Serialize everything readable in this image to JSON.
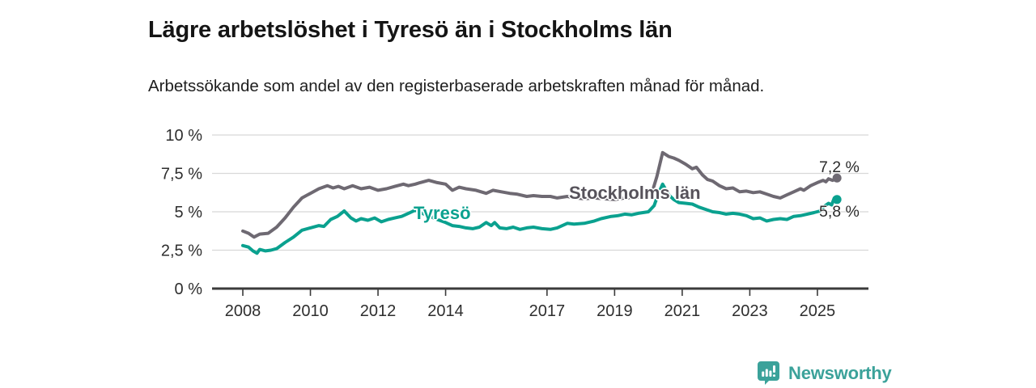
{
  "page": {
    "background": "#ffffff"
  },
  "branding": {
    "logo_text": "Newsworthy",
    "logo_color": "#3ba29a",
    "logo_icon": "bar-chart-speech-bubble-icon"
  },
  "chart_data": {
    "type": "line",
    "title": "Lägre arbetslöshet i Tyresö än i Stockholms län",
    "subtitle": "Arbetssökande som andel av den registerbaserade arbetskraften månad för månad.",
    "unit": "%",
    "grid": true,
    "legend_position": "inline-labels",
    "xlim": [
      2007.1,
      2026.5
    ],
    "ylim": [
      0,
      10
    ],
    "x_ticks": [
      {
        "value": 2008,
        "label": "2008"
      },
      {
        "value": 2010,
        "label": "2010"
      },
      {
        "value": 2012,
        "label": "2012"
      },
      {
        "value": 2014,
        "label": "2014"
      },
      {
        "value": 2017,
        "label": "2017"
      },
      {
        "value": 2019,
        "label": "2019"
      },
      {
        "value": 2021,
        "label": "2021"
      },
      {
        "value": 2023,
        "label": "2023"
      },
      {
        "value": 2025,
        "label": "2025"
      }
    ],
    "y_ticks": [
      {
        "value": 0,
        "label": "0 %"
      },
      {
        "value": 2.5,
        "label": "2,5 %"
      },
      {
        "value": 5,
        "label": "5 %"
      },
      {
        "value": 7.5,
        "label": "7,5 %"
      },
      {
        "value": 10,
        "label": "10 %"
      }
    ],
    "colors": {
      "grid": "#d8d8d8",
      "axis": "#3b3b3b",
      "tick_text": "#2e2e2e"
    },
    "series": [
      {
        "name": "Stockholms län",
        "color": "#6e6972",
        "end_label": "7,2 %",
        "end_value": 7.2,
        "points": [
          [
            2008.0,
            3.75
          ],
          [
            2008.17,
            3.6
          ],
          [
            2008.33,
            3.35
          ],
          [
            2008.5,
            3.55
          ],
          [
            2008.75,
            3.6
          ],
          [
            2009.0,
            4.0
          ],
          [
            2009.25,
            4.6
          ],
          [
            2009.5,
            5.3
          ],
          [
            2009.75,
            5.9
          ],
          [
            2010.0,
            6.2
          ],
          [
            2010.25,
            6.5
          ],
          [
            2010.5,
            6.7
          ],
          [
            2010.67,
            6.55
          ],
          [
            2010.83,
            6.65
          ],
          [
            2011.0,
            6.5
          ],
          [
            2011.25,
            6.7
          ],
          [
            2011.5,
            6.5
          ],
          [
            2011.75,
            6.6
          ],
          [
            2012.0,
            6.4
          ],
          [
            2012.25,
            6.5
          ],
          [
            2012.5,
            6.65
          ],
          [
            2012.75,
            6.8
          ],
          [
            2012.9,
            6.7
          ],
          [
            2013.1,
            6.8
          ],
          [
            2013.25,
            6.9
          ],
          [
            2013.5,
            7.05
          ],
          [
            2013.75,
            6.9
          ],
          [
            2014.0,
            6.8
          ],
          [
            2014.2,
            6.4
          ],
          [
            2014.4,
            6.6
          ],
          [
            2014.6,
            6.5
          ],
          [
            2014.9,
            6.4
          ],
          [
            2015.2,
            6.2
          ],
          [
            2015.4,
            6.4
          ],
          [
            2015.65,
            6.3
          ],
          [
            2015.9,
            6.2
          ],
          [
            2016.1,
            6.15
          ],
          [
            2016.4,
            6.0
          ],
          [
            2016.6,
            6.05
          ],
          [
            2016.85,
            6.0
          ],
          [
            2017.1,
            6.0
          ],
          [
            2017.3,
            5.9
          ],
          [
            2017.6,
            6.0
          ],
          [
            2017.85,
            5.9
          ],
          [
            2018.1,
            5.85
          ],
          [
            2018.4,
            5.9
          ],
          [
            2018.7,
            5.85
          ],
          [
            2019.0,
            5.8
          ],
          [
            2019.3,
            5.9
          ],
          [
            2019.6,
            5.95
          ],
          [
            2019.9,
            6.0
          ],
          [
            2020.1,
            6.2
          ],
          [
            2020.25,
            7.3
          ],
          [
            2020.42,
            8.85
          ],
          [
            2020.6,
            8.6
          ],
          [
            2020.75,
            8.5
          ],
          [
            2020.9,
            8.35
          ],
          [
            2021.1,
            8.1
          ],
          [
            2021.3,
            7.8
          ],
          [
            2021.42,
            7.9
          ],
          [
            2021.6,
            7.4
          ],
          [
            2021.75,
            7.1
          ],
          [
            2021.9,
            7.0
          ],
          [
            2022.1,
            6.7
          ],
          [
            2022.3,
            6.5
          ],
          [
            2022.5,
            6.55
          ],
          [
            2022.7,
            6.3
          ],
          [
            2022.9,
            6.35
          ],
          [
            2023.1,
            6.25
          ],
          [
            2023.3,
            6.3
          ],
          [
            2023.5,
            6.15
          ],
          [
            2023.7,
            6.0
          ],
          [
            2023.9,
            5.9
          ],
          [
            2024.1,
            6.1
          ],
          [
            2024.3,
            6.3
          ],
          [
            2024.5,
            6.5
          ],
          [
            2024.6,
            6.4
          ],
          [
            2024.8,
            6.7
          ],
          [
            2025.0,
            6.9
          ],
          [
            2025.17,
            7.05
          ],
          [
            2025.25,
            6.95
          ],
          [
            2025.33,
            7.15
          ],
          [
            2025.45,
            7.05
          ],
          [
            2025.58,
            7.2
          ]
        ]
      },
      {
        "name": "Tyresö",
        "color": "#0aa18f",
        "end_label": "5,8 %",
        "end_value": 5.8,
        "points": [
          [
            2008.0,
            2.8
          ],
          [
            2008.17,
            2.7
          ],
          [
            2008.3,
            2.45
          ],
          [
            2008.42,
            2.3
          ],
          [
            2008.5,
            2.55
          ],
          [
            2008.67,
            2.45
          ],
          [
            2008.83,
            2.5
          ],
          [
            2009.0,
            2.6
          ],
          [
            2009.25,
            3.0
          ],
          [
            2009.5,
            3.35
          ],
          [
            2009.75,
            3.8
          ],
          [
            2010.0,
            3.95
          ],
          [
            2010.25,
            4.1
          ],
          [
            2010.4,
            4.05
          ],
          [
            2010.6,
            4.5
          ],
          [
            2010.8,
            4.7
          ],
          [
            2011.0,
            5.05
          ],
          [
            2011.2,
            4.6
          ],
          [
            2011.35,
            4.4
          ],
          [
            2011.5,
            4.55
          ],
          [
            2011.7,
            4.45
          ],
          [
            2011.9,
            4.6
          ],
          [
            2012.1,
            4.35
          ],
          [
            2012.3,
            4.5
          ],
          [
            2012.5,
            4.6
          ],
          [
            2012.7,
            4.7
          ],
          [
            2012.9,
            4.9
          ],
          [
            2013.1,
            5.1
          ],
          [
            2013.3,
            4.9
          ],
          [
            2013.5,
            4.75
          ],
          [
            2013.75,
            4.5
          ],
          [
            2014.0,
            4.3
          ],
          [
            2014.2,
            4.1
          ],
          [
            2014.4,
            4.05
          ],
          [
            2014.6,
            3.95
          ],
          [
            2014.8,
            3.9
          ],
          [
            2015.0,
            4.0
          ],
          [
            2015.2,
            4.3
          ],
          [
            2015.35,
            4.1
          ],
          [
            2015.45,
            4.3
          ],
          [
            2015.6,
            3.95
          ],
          [
            2015.8,
            3.9
          ],
          [
            2016.0,
            4.0
          ],
          [
            2016.2,
            3.85
          ],
          [
            2016.4,
            3.95
          ],
          [
            2016.6,
            4.0
          ],
          [
            2016.85,
            3.9
          ],
          [
            2017.1,
            3.85
          ],
          [
            2017.3,
            3.95
          ],
          [
            2017.6,
            4.25
          ],
          [
            2017.8,
            4.2
          ],
          [
            2018.1,
            4.25
          ],
          [
            2018.4,
            4.4
          ],
          [
            2018.6,
            4.55
          ],
          [
            2018.9,
            4.7
          ],
          [
            2019.1,
            4.75
          ],
          [
            2019.3,
            4.85
          ],
          [
            2019.5,
            4.8
          ],
          [
            2019.7,
            4.9
          ],
          [
            2020.0,
            5.0
          ],
          [
            2020.17,
            5.4
          ],
          [
            2020.3,
            6.2
          ],
          [
            2020.42,
            6.8
          ],
          [
            2020.6,
            6.1
          ],
          [
            2020.75,
            5.8
          ],
          [
            2020.9,
            5.6
          ],
          [
            2021.1,
            5.55
          ],
          [
            2021.3,
            5.5
          ],
          [
            2021.5,
            5.3
          ],
          [
            2021.7,
            5.15
          ],
          [
            2021.9,
            5.0
          ],
          [
            2022.1,
            4.95
          ],
          [
            2022.3,
            4.85
          ],
          [
            2022.5,
            4.9
          ],
          [
            2022.7,
            4.85
          ],
          [
            2022.9,
            4.75
          ],
          [
            2023.1,
            4.55
          ],
          [
            2023.3,
            4.6
          ],
          [
            2023.5,
            4.4
          ],
          [
            2023.7,
            4.5
          ],
          [
            2023.9,
            4.55
          ],
          [
            2024.1,
            4.5
          ],
          [
            2024.3,
            4.7
          ],
          [
            2024.5,
            4.75
          ],
          [
            2024.7,
            4.85
          ],
          [
            2024.9,
            4.95
          ],
          [
            2025.08,
            5.05
          ],
          [
            2025.17,
            5.3
          ],
          [
            2025.33,
            5.55
          ],
          [
            2025.42,
            5.45
          ],
          [
            2025.5,
            5.9
          ],
          [
            2025.58,
            5.8
          ]
        ]
      }
    ]
  }
}
